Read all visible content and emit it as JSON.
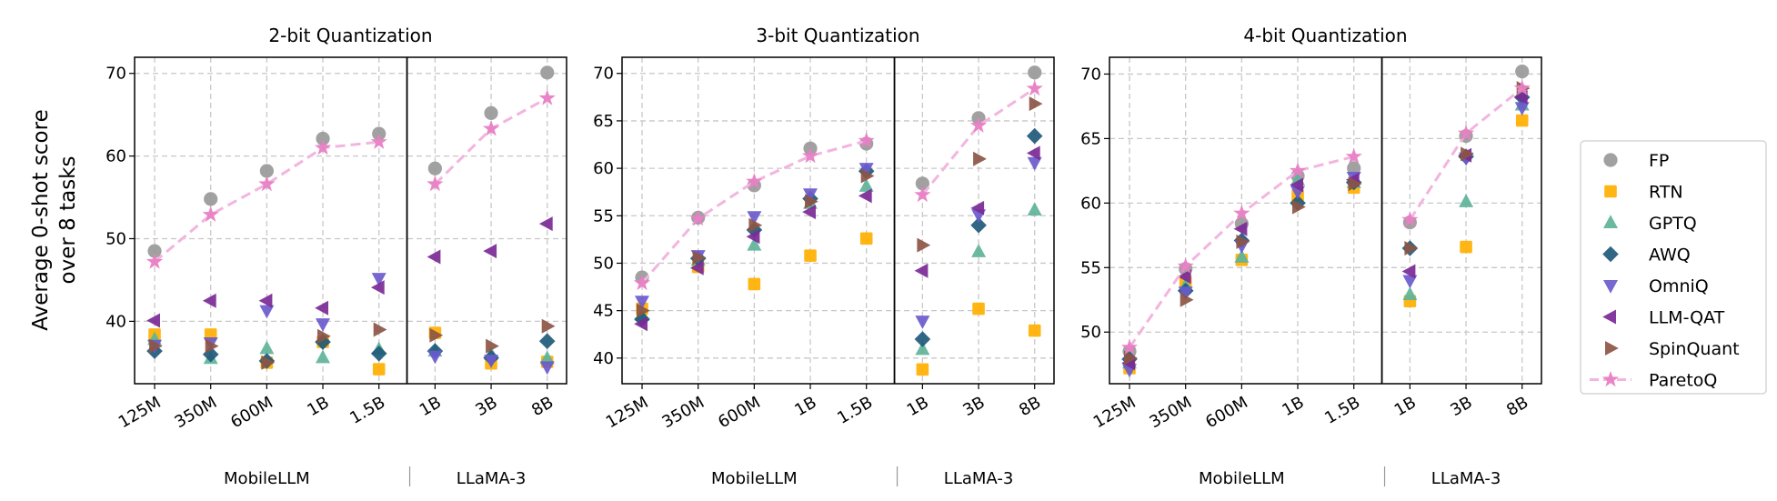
{
  "ylabel": [
    "Average 0-shot score",
    "over 8 tasks"
  ],
  "groups": [
    "MobileLLM",
    "LLaMA-3"
  ],
  "categories": [
    "125M",
    "350M",
    "600M",
    "1B",
    "1.5B",
    "1B",
    "3B",
    "8B"
  ],
  "colors": {
    "FP": "#999999",
    "RTN": "#FFB000",
    "GPTQ": "#5FB39A",
    "AWQ": "#1F5A7A",
    "OmniQ": "#6A5ACD",
    "LLM-QAT": "#7B2A96",
    "SpinQuant": "#8C5545",
    "ParetoQ": "#E87FC4"
  },
  "markers": {
    "FP": "circle",
    "RTN": "square",
    "GPTQ": "triangle-up",
    "AWQ": "diamond",
    "OmniQ": "triangle-down",
    "LLM-QAT": "triangle-left",
    "SpinQuant": "triangle-right",
    "ParetoQ": "star"
  },
  "legend": {
    "placement": "right",
    "entries": [
      "FP",
      "RTN",
      "GPTQ",
      "AWQ",
      "OmniQ",
      "LLM-QAT",
      "SpinQuant",
      "ParetoQ"
    ]
  },
  "chart_data": [
    {
      "type": "scatter",
      "title": "2-bit Quantization",
      "ylim": [
        32.45,
        71.95
      ],
      "yticks": [
        40,
        50,
        60,
        70
      ],
      "grid": true,
      "series": [
        {
          "name": "FP",
          "values": [
            48.5,
            54.8,
            58.2,
            62.1,
            62.7,
            58.5,
            65.2,
            70.1
          ]
        },
        {
          "name": "RTN",
          "values": [
            38.4,
            38.4,
            35.0,
            37.5,
            34.2,
            38.6,
            34.9,
            35.1
          ]
        },
        {
          "name": "GPTQ",
          "values": [
            37.8,
            35.5,
            36.7,
            35.6,
            36.6,
            36.4,
            36.0,
            35.5
          ]
        },
        {
          "name": "AWQ",
          "values": [
            36.4,
            36.0,
            35.2,
            37.5,
            36.1,
            36.4,
            35.6,
            37.6
          ]
        },
        {
          "name": "OmniQ",
          "values": [
            37.1,
            37.4,
            41.3,
            39.7,
            45.2,
            35.8,
            35.3,
            34.5
          ]
        },
        {
          "name": "LLM-QAT",
          "values": [
            40.1,
            42.5,
            42.5,
            41.6,
            44.1,
            47.8,
            48.5,
            51.8
          ]
        },
        {
          "name": "SpinQuant",
          "values": [
            37.0,
            37.0,
            35.0,
            38.2,
            39.0,
            38.3,
            37.0,
            39.4
          ]
        },
        {
          "name": "ParetoQ",
          "values": [
            47.2,
            52.9,
            56.6,
            61.0,
            61.7,
            56.6,
            63.3,
            67.0
          ]
        }
      ]
    },
    {
      "type": "scatter",
      "title": "3-bit Quantization",
      "ylim": [
        37.3,
        71.7
      ],
      "yticks": [
        40,
        45,
        50,
        55,
        60,
        65,
        70
      ],
      "grid": true,
      "series": [
        {
          "name": "FP",
          "values": [
            48.5,
            54.8,
            58.2,
            62.1,
            62.6,
            58.4,
            65.3,
            70.1
          ]
        },
        {
          "name": "RTN",
          "values": [
            45.2,
            49.6,
            47.8,
            50.8,
            52.6,
            38.8,
            45.2,
            42.9
          ]
        },
        {
          "name": "GPTQ",
          "values": [
            44.5,
            50.3,
            51.9,
            56.3,
            58.1,
            40.9,
            51.2,
            55.6
          ]
        },
        {
          "name": "AWQ",
          "values": [
            44.1,
            50.5,
            53.5,
            56.8,
            59.7,
            42.0,
            54.0,
            63.4
          ]
        },
        {
          "name": "OmniQ",
          "values": [
            46.0,
            50.8,
            54.9,
            57.3,
            60.0,
            43.9,
            55.1,
            60.6
          ]
        },
        {
          "name": "LLM-QAT",
          "values": [
            43.6,
            49.5,
            52.8,
            55.4,
            57.1,
            49.2,
            55.8,
            61.6
          ]
        },
        {
          "name": "SpinQuant",
          "values": [
            45.0,
            50.6,
            54.0,
            56.5,
            59.2,
            51.9,
            61.0,
            66.8
          ]
        },
        {
          "name": "ParetoQ",
          "values": [
            47.9,
            54.7,
            58.6,
            61.3,
            62.9,
            57.2,
            64.5,
            68.4
          ]
        }
      ]
    },
    {
      "type": "scatter",
      "title": "4-bit Quantization",
      "ylim": [
        46.0,
        71.3
      ],
      "yticks": [
        50,
        55,
        60,
        65,
        70
      ],
      "grid": true,
      "series": [
        {
          "name": "FP",
          "values": [
            48.5,
            54.9,
            58.4,
            62.1,
            62.7,
            58.5,
            65.2,
            70.2
          ]
        },
        {
          "name": "RTN",
          "values": [
            47.2,
            53.9,
            55.6,
            60.6,
            61.2,
            52.4,
            56.6,
            66.4
          ]
        },
        {
          "name": "GPTQ",
          "values": [
            47.6,
            53.6,
            55.8,
            61.8,
            61.6,
            52.9,
            60.1,
            67.6
          ]
        },
        {
          "name": "AWQ",
          "values": [
            47.9,
            53.2,
            57.1,
            60.0,
            61.6,
            56.5,
            63.6,
            68.2
          ]
        },
        {
          "name": "OmniQ",
          "values": [
            47.1,
            53.1,
            56.7,
            60.9,
            62.0,
            54.0,
            63.5,
            67.4
          ]
        },
        {
          "name": "LLM-QAT",
          "values": [
            47.6,
            54.3,
            58.0,
            61.4,
            61.8,
            54.7,
            63.7,
            68.2
          ]
        },
        {
          "name": "SpinQuant",
          "values": [
            48.0,
            52.5,
            57.0,
            59.7,
            61.5,
            56.5,
            63.8,
            68.9
          ]
        },
        {
          "name": "ParetoQ",
          "values": [
            48.8,
            55.1,
            59.2,
            62.5,
            63.6,
            58.7,
            65.4,
            68.9
          ]
        }
      ]
    }
  ]
}
